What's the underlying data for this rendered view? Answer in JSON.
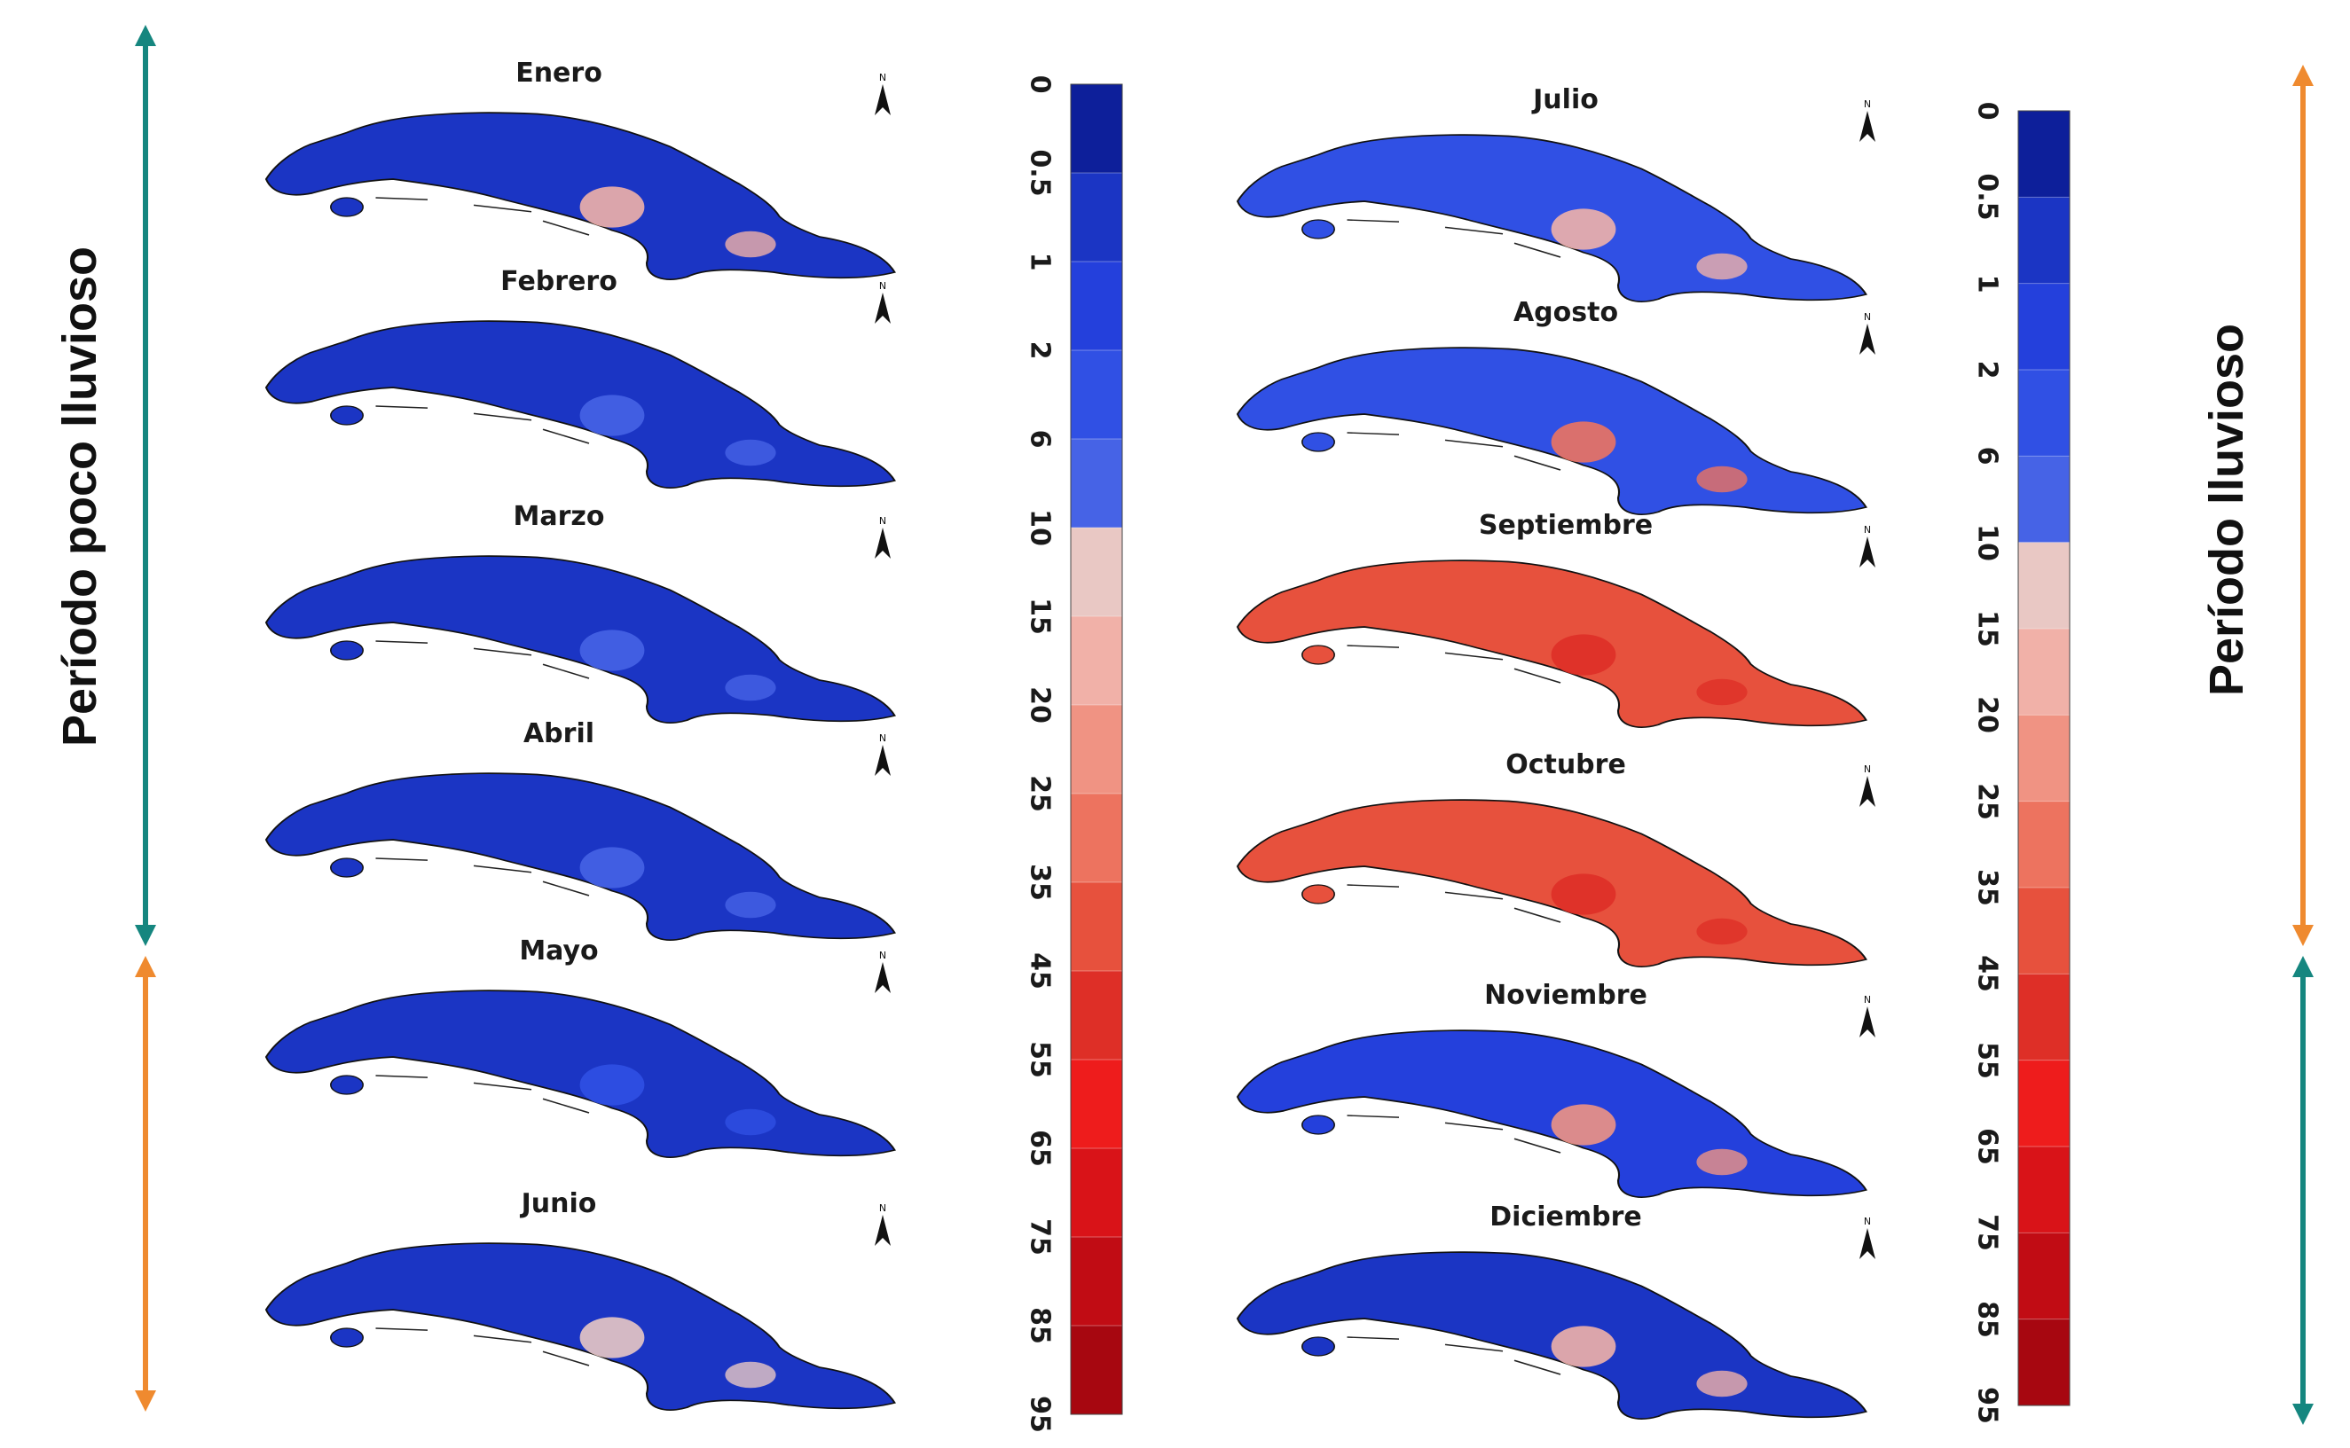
{
  "figure": {
    "left_period_label": "Período poco lluvioso",
    "right_period_label": "Período lluvioso",
    "colors": {
      "dry_arrow": "#15867f",
      "wet_arrow": "#ef8a2f",
      "map_outline": "#111111"
    }
  },
  "months_left": [
    {
      "name": "Enero",
      "dominant_class": "0.5",
      "accent_class": "15"
    },
    {
      "name": "Febrero",
      "dominant_class": "0.5",
      "accent_class": "6"
    },
    {
      "name": "Marzo",
      "dominant_class": "0.5",
      "accent_class": "6"
    },
    {
      "name": "Abril",
      "dominant_class": "0.5",
      "accent_class": "6"
    },
    {
      "name": "Mayo",
      "dominant_class": "0.5",
      "accent_class": "2"
    },
    {
      "name": "Junio",
      "dominant_class": "0.5",
      "accent_class": "10"
    }
  ],
  "months_right": [
    {
      "name": "Julio",
      "dominant_class": "2",
      "accent_class": "15"
    },
    {
      "name": "Agosto",
      "dominant_class": "2",
      "accent_class": "25"
    },
    {
      "name": "Septiembre",
      "dominant_class": "35",
      "accent_class": "45"
    },
    {
      "name": "Octubre",
      "dominant_class": "35",
      "accent_class": "45"
    },
    {
      "name": "Noviembre",
      "dominant_class": "1",
      "accent_class": "20"
    },
    {
      "name": "Diciembre",
      "dominant_class": "0.5",
      "accent_class": "15"
    }
  ],
  "legend": {
    "ticks": [
      "0",
      "0.5",
      "1",
      "2",
      "6",
      "10",
      "15",
      "20",
      "25",
      "35",
      "45",
      "55",
      "65",
      "75",
      "85",
      "95"
    ],
    "colors": [
      "#0d1f9a",
      "#1b35c4",
      "#2440dc",
      "#3050e4",
      "#4663e6",
      "#e9c8c4",
      "#f1b1a8",
      "#f09383",
      "#ed735f",
      "#e7513d",
      "#de2f27",
      "#ee1c1c",
      "#d91318",
      "#c10c14",
      "#a70710"
    ],
    "north_arrow_label": "N"
  }
}
